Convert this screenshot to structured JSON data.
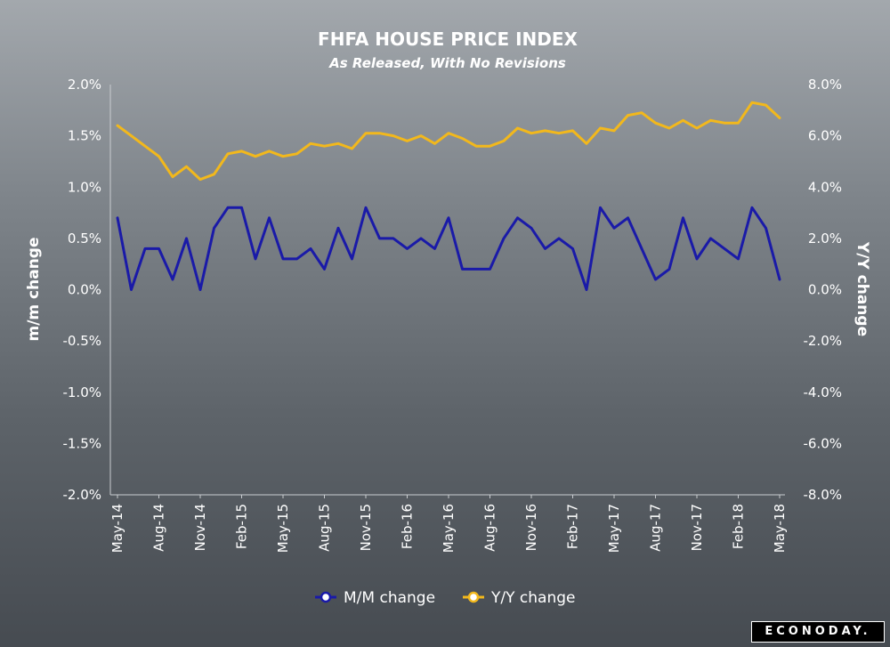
{
  "title": "FHFA HOUSE PRICE INDEX",
  "subtitle": "As Released, With No Revisions",
  "logo_text": "ECONODAY.",
  "chart_data": {
    "type": "line",
    "title": "FHFA HOUSE PRICE INDEX",
    "subtitle": "As Released, With No Revisions",
    "ylabel_left": "m/m change",
    "ylabel_right": "Y/Y change",
    "ylim_left": [
      -2.0,
      2.0
    ],
    "ylim_right": [
      -8.0,
      8.0
    ],
    "yticks_left": [
      "2.0%",
      "1.5%",
      "1.0%",
      "0.5%",
      "0.0%",
      "-0.5%",
      "-1.0%",
      "-1.5%",
      "-2.0%"
    ],
    "yticks_right": [
      "8.0%",
      "6.0%",
      "4.0%",
      "2.0%",
      "0.0%",
      "-2.0%",
      "-4.0%",
      "-6.0%",
      "-8.0%"
    ],
    "x_tick_labels": [
      "May-14",
      "Aug-14",
      "Nov-14",
      "Feb-15",
      "May-15",
      "Aug-15",
      "Nov-15",
      "Feb-16",
      "May-16",
      "Aug-16",
      "Nov-16",
      "Feb-17",
      "May-17",
      "Aug-17",
      "Nov-17",
      "Feb-18",
      "May-18"
    ],
    "x": [
      "May-14",
      "Jun-14",
      "Jul-14",
      "Aug-14",
      "Sep-14",
      "Oct-14",
      "Nov-14",
      "Dec-14",
      "Jan-15",
      "Feb-15",
      "Mar-15",
      "Apr-15",
      "May-15",
      "Jun-15",
      "Jul-15",
      "Aug-15",
      "Sep-15",
      "Oct-15",
      "Nov-15",
      "Dec-15",
      "Jan-16",
      "Feb-16",
      "Mar-16",
      "Apr-16",
      "May-16",
      "Jun-16",
      "Jul-16",
      "Aug-16",
      "Sep-16",
      "Oct-16",
      "Nov-16",
      "Dec-16",
      "Jan-17",
      "Feb-17",
      "Mar-17",
      "Apr-17",
      "May-17",
      "Jun-17",
      "Jul-17",
      "Aug-17",
      "Sep-17",
      "Oct-17",
      "Nov-17",
      "Dec-17",
      "Jan-18",
      "Feb-18",
      "Mar-18",
      "Apr-18",
      "May-18"
    ],
    "series": [
      {
        "name": "M/M change",
        "axis": "left",
        "color": "#1a1aa8",
        "values": [
          0.7,
          0.0,
          0.4,
          0.4,
          0.1,
          0.5,
          0.0,
          0.6,
          0.8,
          0.8,
          0.3,
          0.7,
          0.3,
          0.3,
          0.4,
          0.2,
          0.6,
          0.3,
          0.8,
          0.5,
          0.5,
          0.4,
          0.5,
          0.4,
          0.7,
          0.2,
          0.2,
          0.2,
          0.5,
          0.7,
          0.6,
          0.4,
          0.5,
          0.4,
          0.0,
          0.8,
          0.6,
          0.7,
          0.4,
          0.1,
          0.2,
          0.7,
          0.3,
          0.5,
          0.4,
          0.3,
          0.8,
          0.6,
          0.1
        ]
      },
      {
        "name": "Y/Y change",
        "axis": "right",
        "color": "#f2b81c",
        "values": [
          6.4,
          6.0,
          5.6,
          5.2,
          4.4,
          4.8,
          4.3,
          4.5,
          5.3,
          5.4,
          5.2,
          5.4,
          5.2,
          5.3,
          5.7,
          5.6,
          5.7,
          5.5,
          6.1,
          6.1,
          6.0,
          5.8,
          6.0,
          5.7,
          6.1,
          5.9,
          5.6,
          5.6,
          5.8,
          6.3,
          6.1,
          6.2,
          6.1,
          6.2,
          5.7,
          6.3,
          6.2,
          6.8,
          6.9,
          6.5,
          6.3,
          6.6,
          6.3,
          6.6,
          6.5,
          6.5,
          7.3,
          7.2,
          6.7
        ]
      }
    ],
    "legend": [
      "M/M change",
      "Y/Y change"
    ],
    "legend_position": "bottom",
    "grid": false
  }
}
